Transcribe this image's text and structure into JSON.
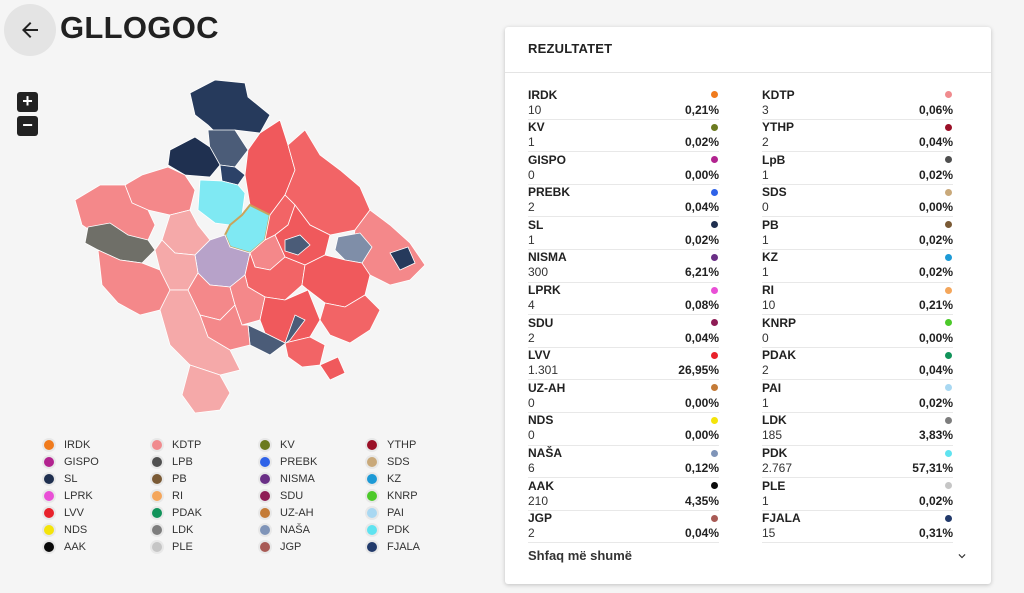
{
  "header": {
    "title": "GLLOGOC"
  },
  "zoom": {
    "in": "+",
    "out": "−"
  },
  "results": {
    "title": "REZULTATET",
    "show_more": "Shfaq më shumë",
    "left": [
      {
        "party": "IRDK",
        "votes": "10",
        "pct": "0,21%",
        "color": "#f07b1d"
      },
      {
        "party": "KV",
        "votes": "1",
        "pct": "0,02%",
        "color": "#6b7a1f"
      },
      {
        "party": "GISPO",
        "votes": "0",
        "pct": "0,00%",
        "color": "#b2238f"
      },
      {
        "party": "PREBK",
        "votes": "2",
        "pct": "0,04%",
        "color": "#2e62e8"
      },
      {
        "party": "SL",
        "votes": "1",
        "pct": "0,02%",
        "color": "#1f2f4f"
      },
      {
        "party": "NISMA",
        "votes": "300",
        "pct": "6,21%",
        "color": "#6a2f86"
      },
      {
        "party": "LPRK",
        "votes": "4",
        "pct": "0,08%",
        "color": "#e94fd6"
      },
      {
        "party": "SDU",
        "votes": "2",
        "pct": "0,04%",
        "color": "#8e1c55"
      },
      {
        "party": "LVV",
        "votes": "1.301",
        "pct": "26,95%",
        "color": "#e8222b"
      },
      {
        "party": "UZ-AH",
        "votes": "0",
        "pct": "0,00%",
        "color": "#c47b37"
      },
      {
        "party": "NDS",
        "votes": "0",
        "pct": "0,00%",
        "color": "#f4e40a"
      },
      {
        "party": "NAŠA",
        "votes": "6",
        "pct": "0,12%",
        "color": "#7f94b8"
      },
      {
        "party": "AAK",
        "votes": "210",
        "pct": "4,35%",
        "color": "#0a0a0a"
      },
      {
        "party": "JGP",
        "votes": "2",
        "pct": "0,04%",
        "color": "#a85a55"
      }
    ],
    "right": [
      {
        "party": "KDTP",
        "votes": "3",
        "pct": "0,06%",
        "color": "#f08b8e"
      },
      {
        "party": "YTHP",
        "votes": "2",
        "pct": "0,04%",
        "color": "#9a1027"
      },
      {
        "party": "LpB",
        "votes": "1",
        "pct": "0,02%",
        "color": "#4f4f4f"
      },
      {
        "party": "SDS",
        "votes": "0",
        "pct": "0,00%",
        "color": "#c9a97a"
      },
      {
        "party": "PB",
        "votes": "1",
        "pct": "0,02%",
        "color": "#7a5a35"
      },
      {
        "party": "KZ",
        "votes": "1",
        "pct": "0,02%",
        "color": "#1d9ad6"
      },
      {
        "party": "RI",
        "votes": "10",
        "pct": "0,21%",
        "color": "#f4a65b"
      },
      {
        "party": "KNRP",
        "votes": "0",
        "pct": "0,00%",
        "color": "#4cc92a"
      },
      {
        "party": "PDAK",
        "votes": "2",
        "pct": "0,04%",
        "color": "#11935a"
      },
      {
        "party": "PAI",
        "votes": "1",
        "pct": "0,02%",
        "color": "#a9d8f2"
      },
      {
        "party": "LDK",
        "votes": "185",
        "pct": "3,83%",
        "color": "#7d7d7d"
      },
      {
        "party": "PDK",
        "votes": "2.767",
        "pct": "57,31%",
        "color": "#5fe3f0"
      },
      {
        "party": "PLE",
        "votes": "1",
        "pct": "0,02%",
        "color": "#c6c6c6"
      },
      {
        "party": "FJALA",
        "votes": "15",
        "pct": "0,31%",
        "color": "#223a6b"
      }
    ]
  },
  "legend": [
    {
      "name": "IRDK",
      "color": "#f07b1d"
    },
    {
      "name": "KDTP",
      "color": "#f08b8e"
    },
    {
      "name": "KV",
      "color": "#6b7a1f"
    },
    {
      "name": "YTHP",
      "color": "#9a1027"
    },
    {
      "name": "GISPO",
      "color": "#b2238f"
    },
    {
      "name": "LPB",
      "color": "#4f4f4f"
    },
    {
      "name": "PREBK",
      "color": "#2e62e8"
    },
    {
      "name": "SDS",
      "color": "#c9a97a"
    },
    {
      "name": "SL",
      "color": "#1f2f4f"
    },
    {
      "name": "PB",
      "color": "#7a5a35"
    },
    {
      "name": "NISMA",
      "color": "#6a2f86"
    },
    {
      "name": "KZ",
      "color": "#1d9ad6"
    },
    {
      "name": "LPRK",
      "color": "#e94fd6"
    },
    {
      "name": "RI",
      "color": "#f4a65b"
    },
    {
      "name": "SDU",
      "color": "#8e1c55"
    },
    {
      "name": "KNRP",
      "color": "#4cc92a"
    },
    {
      "name": "LVV",
      "color": "#e8222b"
    },
    {
      "name": "PDAK",
      "color": "#11935a"
    },
    {
      "name": "UZ-AH",
      "color": "#c47b37"
    },
    {
      "name": "PAI",
      "color": "#a9d8f2"
    },
    {
      "name": "NDS",
      "color": "#f4e40a"
    },
    {
      "name": "LDK",
      "color": "#7d7d7d"
    },
    {
      "name": "NAŠA",
      "color": "#7f94b8"
    },
    {
      "name": "PDK",
      "color": "#5fe3f0"
    },
    {
      "name": "AAK",
      "color": "#0a0a0a"
    },
    {
      "name": "PLE",
      "color": "#c6c6c6"
    },
    {
      "name": "JGP",
      "color": "#a85a55"
    },
    {
      "name": "FJALA",
      "color": "#223a6b"
    }
  ],
  "map_colors": {
    "lvv_light": "#f4888a",
    "lvv_mid": "#f26466",
    "lvv_strong": "#f0595c",
    "lvv_pale": "#f5a9a9",
    "pdk": "#7fe9f3",
    "nisma": "#b7a2c9",
    "srb_dark": "#263a5c",
    "srb_mid": "#4b5c78",
    "naša": "#7f8ea8",
    "ldk": "#6f6f68",
    "selected_outline": "#c9a45c"
  }
}
